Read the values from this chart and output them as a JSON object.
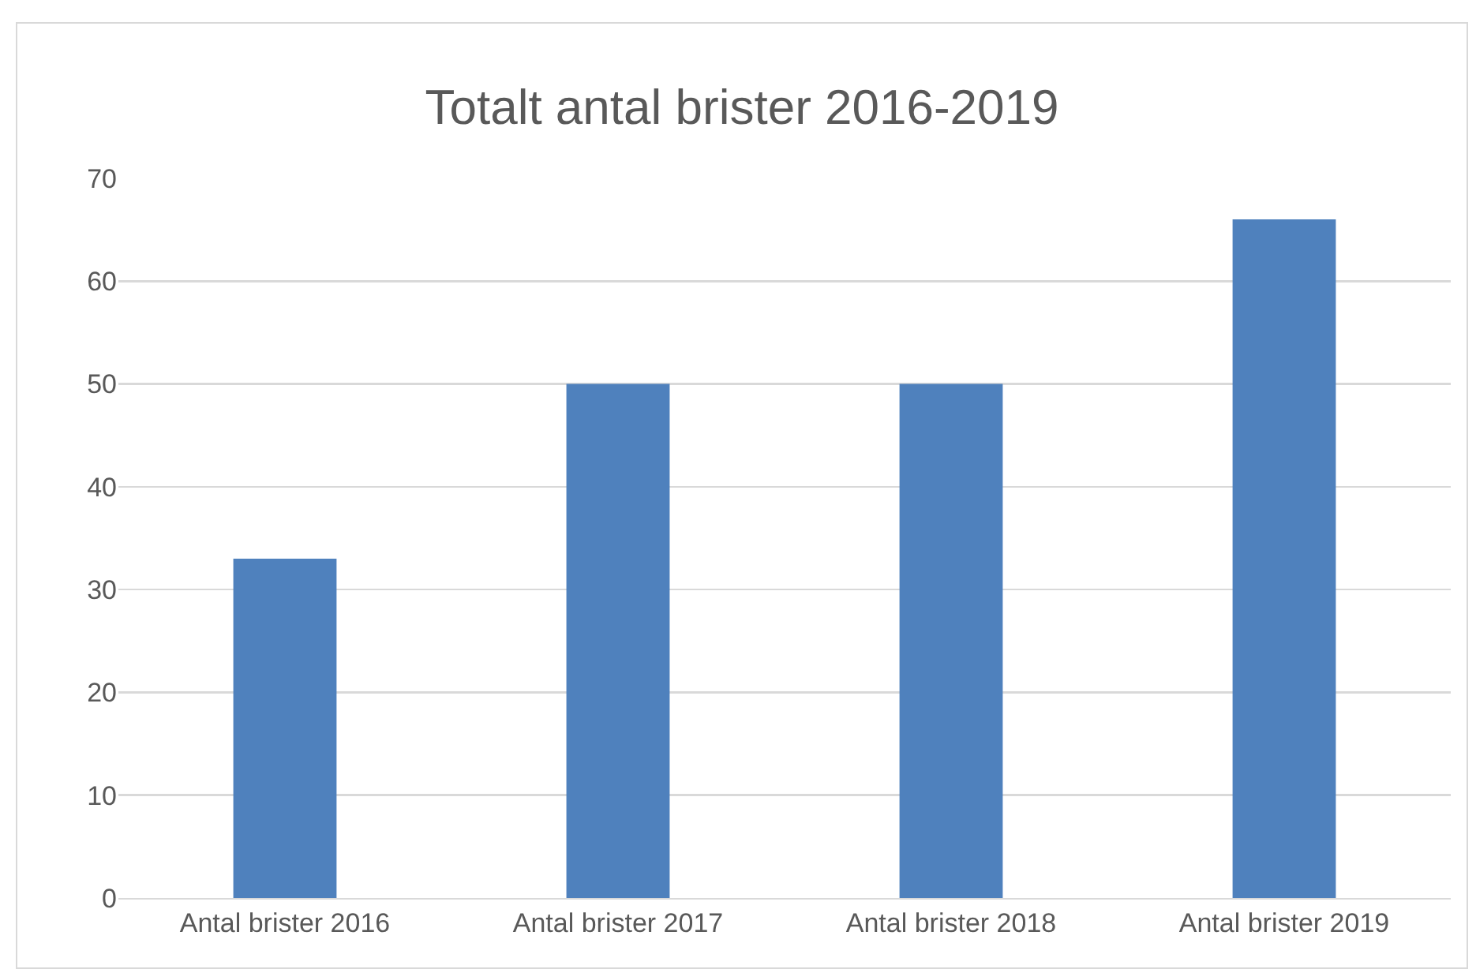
{
  "chart_data": {
    "type": "bar",
    "title": "Totalt antal brister 2016-2019",
    "categories": [
      "Antal brister 2016",
      "Antal brister 2017",
      "Antal brister 2018",
      "Antal brister 2019"
    ],
    "values": [
      33,
      50,
      50,
      66
    ],
    "color": "#4f81bd",
    "ylim": [
      0,
      70
    ],
    "yticks": [
      0,
      10,
      20,
      30,
      40,
      50,
      60,
      70
    ],
    "grid": "y"
  }
}
